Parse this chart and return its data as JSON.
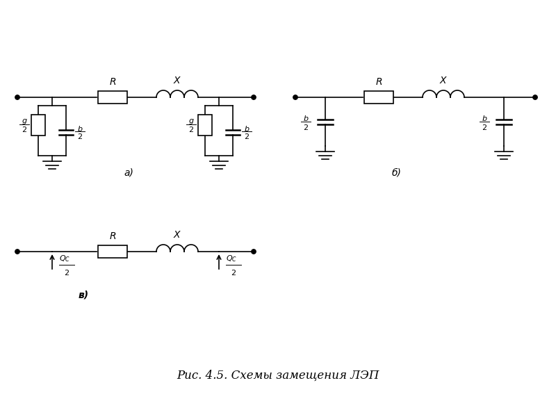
{
  "bg_color": "#ffffff",
  "line_color": "#000000",
  "title": "Рис. 4.5. Схемы замещения ЛЭП",
  "title_fontsize": 12,
  "label_a": "а)",
  "label_b": "б)",
  "label_c": "в)"
}
